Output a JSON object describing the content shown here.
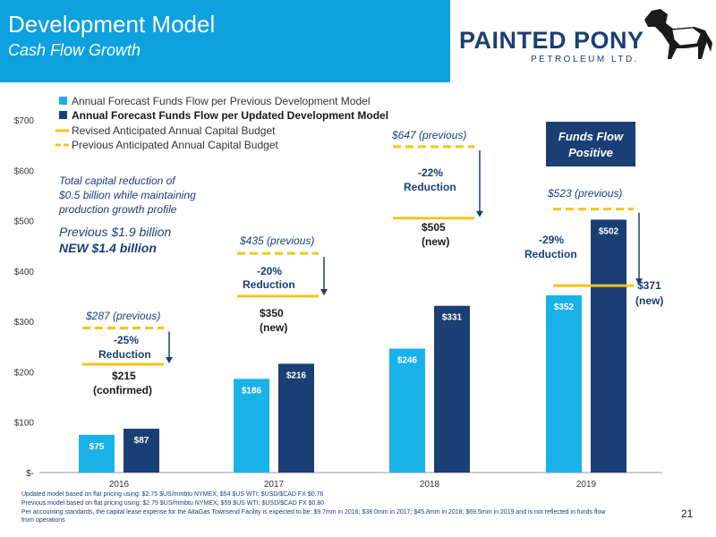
{
  "header": {
    "title": "Development Model",
    "subtitle": "Cash Flow Growth",
    "logo_main": "PAINTED PONY",
    "logo_sub": "PETROLEUM LTD."
  },
  "colors": {
    "header_bg": "#0da1e0",
    "previous_bar": "#19b2e8",
    "updated_bar": "#1a3f74",
    "revised_budget_line": "#f5c518",
    "previous_budget_line": "#f5c518"
  },
  "chart_data": {
    "type": "bar",
    "categories": [
      "2016",
      "2017",
      "2018",
      "2019"
    ],
    "ylim": [
      0,
      700
    ],
    "yticks": [
      "$-",
      "$100",
      "$200",
      "$300",
      "$400",
      "$500",
      "$600",
      "$700"
    ],
    "series": [
      {
        "name": "Annual Forecast Funds Flow per Previous Development Model",
        "values": [
          75,
          186,
          246,
          352
        ],
        "labels": [
          "$75",
          "$186",
          "$246",
          "$352"
        ]
      },
      {
        "name": "Annual Forecast Funds Flow per Updated Development Model",
        "values": [
          87,
          216,
          331,
          502
        ],
        "labels": [
          "$87",
          "$216",
          "$331",
          "$502"
        ]
      }
    ],
    "budget_lines": [
      {
        "name": "Revised Anticipated  Annual Capital Budget",
        "values": [
          215,
          350,
          505,
          371
        ]
      },
      {
        "name": "Previous Anticipated Annual Capital Budget",
        "values": [
          287,
          435,
          647,
          523
        ]
      }
    ],
    "annotations": {
      "prev_2016": "$287 (previous)",
      "red_2016_a": "-25%",
      "red_2016_b": "Reduction",
      "new_2016_a": "$215",
      "new_2016_b": "(confirmed)",
      "prev_2017": "$435 (previous)",
      "red_2017_a": "-20%",
      "red_2017_b": "Reduction",
      "new_2017_a": "$350",
      "new_2017_b": "(new)",
      "prev_2018": "$647 (previous)",
      "red_2018_a": "-22%",
      "red_2018_b": "Reduction",
      "new_2018_a": "$505",
      "new_2018_b": "(new)",
      "prev_2019": "$523 (previous)",
      "red_2019_a": "-29%",
      "red_2019_b": "Reduction",
      "new_2019_a": "$371",
      "new_2019_b": "(new)",
      "callout_a": "Funds Flow",
      "callout_b": "Positive",
      "note_1": "Total capital reduction of",
      "note_2": "$0.5 billion while maintaining",
      "note_3": "production growth profile",
      "prev_total": "Previous  $1.9 billion",
      "new_total": "NEW  $1.4 billion"
    }
  },
  "footnotes": {
    "line1": "Updated model based on flat pricing using: $2.75 $US/mmbtu NYMEX; $54 $US WTI; $USD/$CAD FX $0.76",
    "line2": "Previous model based on flat pricing using: $2.75 $US/mmbtu NYMEX; $59 $US WTI; $USD/$CAD FX $0.80",
    "line3": "Per accounting standards, the capital lease expense for the AltaGas Townsend Facility is expected to be: $9.7mm in 2016; $38.0mm in 2017; $45.8mm in 2018; $69.5mm in 2019 and is not reflected in funds flow from operations"
  },
  "page_number": "21"
}
